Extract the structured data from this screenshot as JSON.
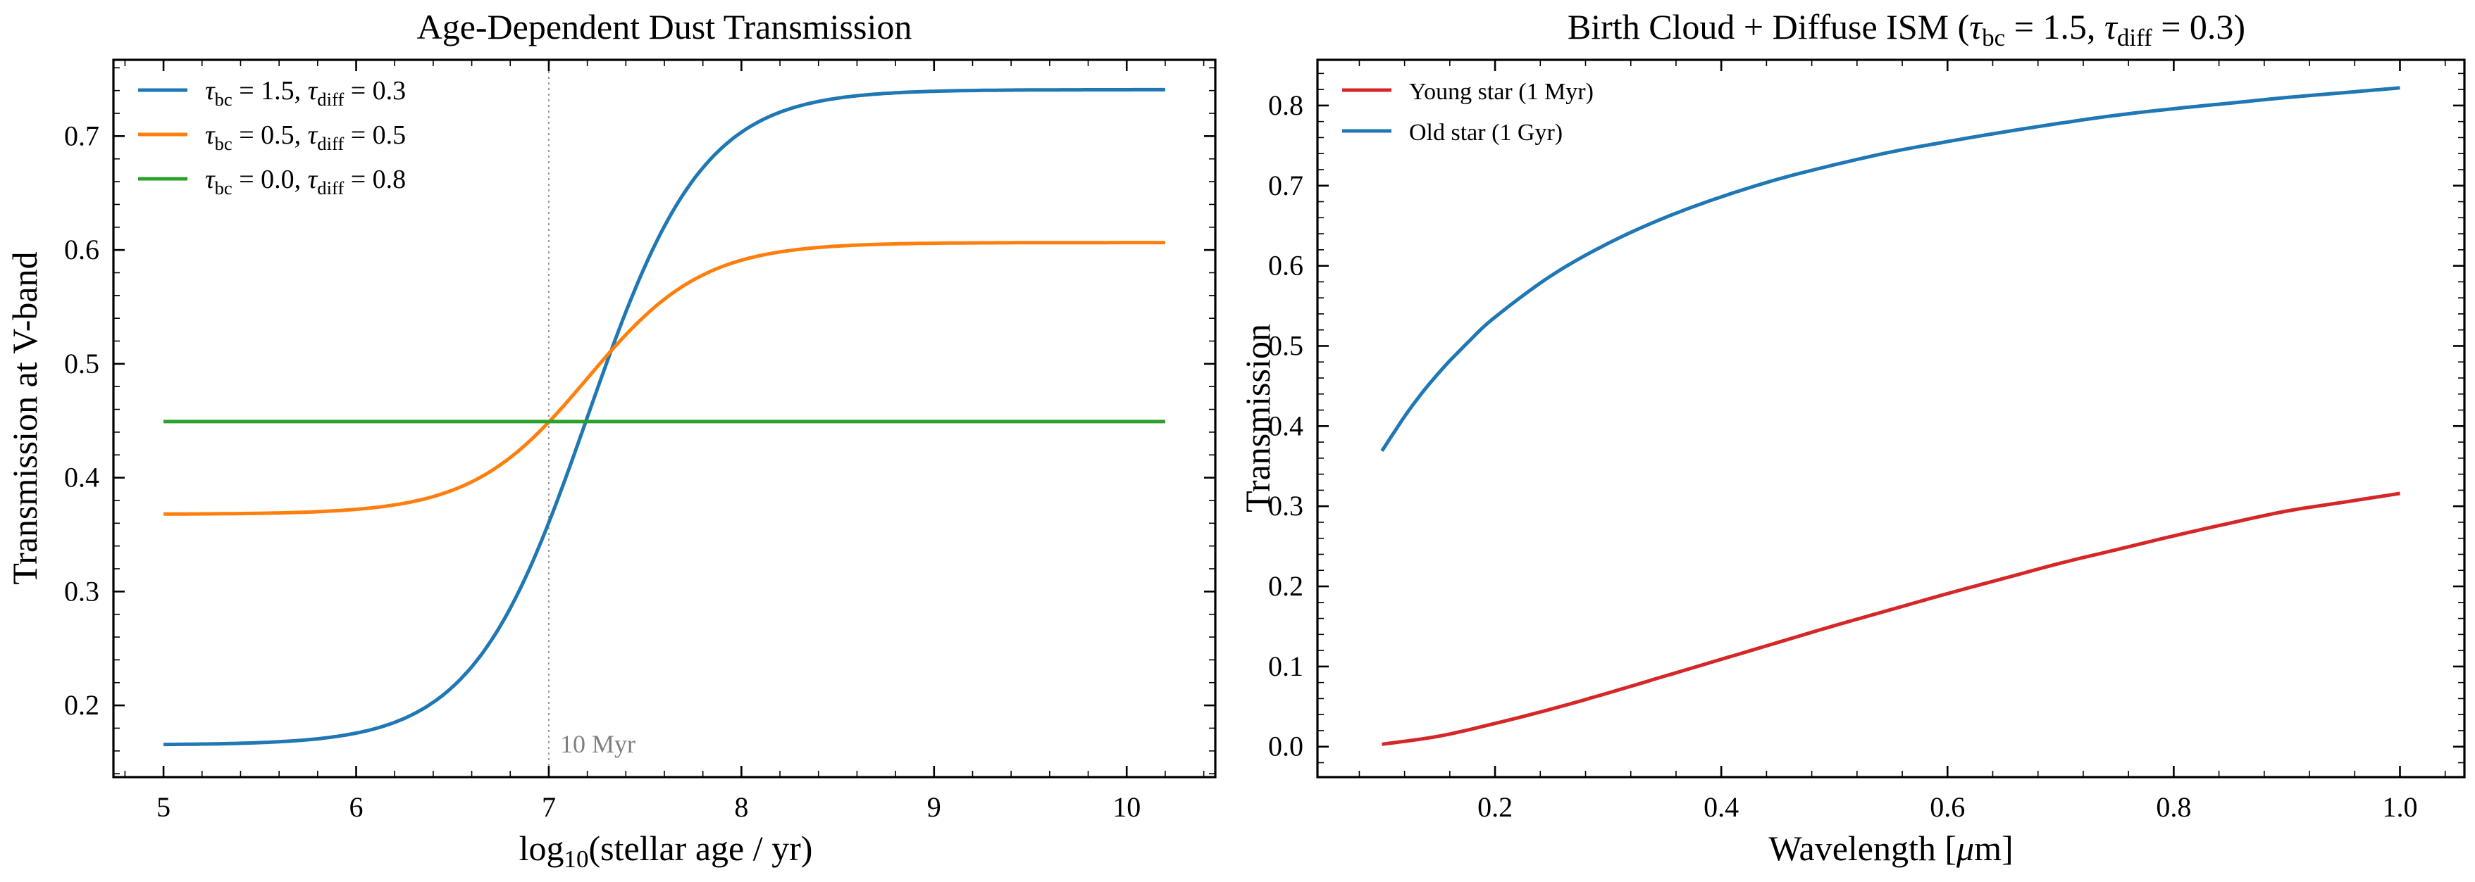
{
  "chart_data": [
    {
      "type": "line",
      "title": "Age-Dependent Dust Transmission",
      "xlabel": {
        "main": "log",
        "sub": "10",
        "rest": "(stellar age / yr)"
      },
      "ylabel": "Transmission at V-band",
      "xlim": [
        4.74,
        10.46
      ],
      "ylim": [
        0.137,
        0.767
      ],
      "xticks": [
        5,
        6,
        7,
        8,
        9,
        10
      ],
      "yticks": [
        0.2,
        0.3,
        0.4,
        0.5,
        0.6,
        0.7
      ],
      "xtick_labels": [
        "5",
        "6",
        "7",
        "8",
        "9",
        "10"
      ],
      "ytick_labels": [
        "0.2",
        "0.3",
        "0.4",
        "0.5",
        "0.6",
        "0.7"
      ],
      "grid": false,
      "legend_position": "top-left",
      "vline": {
        "x": 7.0,
        "label": "10 Myr",
        "color": "#999999"
      },
      "series": [
        {
          "name": "τbc = 1.5, τdiff = 0.3",
          "legend": {
            "t1": "τ",
            "s1": "bc",
            "v1": " = 1.5, ",
            "t2": "τ",
            "s2": "diff",
            "v2": " = 0.3"
          },
          "color": "#1f77b4",
          "sigmoid": {
            "low": 0.1653,
            "high": 0.7408,
            "mid": 7.2,
            "width": 0.3
          }
        },
        {
          "name": "τbc = 0.5, τdiff = 0.5",
          "legend": {
            "t1": "τ",
            "s1": "bc",
            "v1": " = 0.5, ",
            "t2": "τ",
            "s2": "diff",
            "v2": " = 0.5"
          },
          "color": "#ff7f0e",
          "sigmoid": {
            "low": 0.3679,
            "high": 0.6065,
            "mid": 7.2,
            "width": 0.3
          }
        },
        {
          "name": "τbc = 0.0, τdiff = 0.8",
          "legend": {
            "t1": "τ",
            "s1": "bc",
            "v1": " = 0.0, ",
            "t2": "τ",
            "s2": "diff",
            "v2": " = 0.8"
          },
          "color": "#2ca02c",
          "sigmoid": {
            "low": 0.4493,
            "high": 0.4493,
            "mid": 7.2,
            "width": 0.3
          }
        }
      ],
      "x_domain": [
        5.0,
        10.2
      ]
    },
    {
      "type": "line",
      "title": {
        "pre": "Birth Cloud + Diffuse ISM (",
        "t1": "τ",
        "s1": "bc",
        "v1": " = 1.5, ",
        "t2": "τ",
        "s2": "diff",
        "v2": " = 0.3)"
      },
      "xlabel": {
        "pre": "Wavelength [",
        "mu": "μ",
        "post": "m]"
      },
      "ylabel": "Transmission",
      "xlim": [
        0.043,
        1.057
      ],
      "ylim": [
        -0.038,
        0.857
      ],
      "xticks": [
        0.2,
        0.4,
        0.6,
        0.8,
        1.0
      ],
      "yticks": [
        0.0,
        0.1,
        0.2,
        0.3,
        0.4,
        0.5,
        0.6,
        0.7,
        0.8
      ],
      "xtick_labels": [
        "0.2",
        "0.4",
        "0.6",
        "0.8",
        "1.0"
      ],
      "ytick_labels": [
        "0.0",
        "0.1",
        "0.2",
        "0.3",
        "0.4",
        "0.5",
        "0.6",
        "0.7",
        "0.8"
      ],
      "grid": false,
      "legend_position": "top-left",
      "series": [
        {
          "name": "Young star (1 Myr)",
          "color": "#d62728",
          "x": [
            0.1,
            0.15,
            0.2,
            0.25,
            0.3,
            0.35,
            0.4,
            0.45,
            0.5,
            0.55,
            0.6,
            0.65,
            0.7,
            0.75,
            0.8,
            0.85,
            0.9,
            0.95,
            1.0
          ],
          "y": [
            0.003,
            0.013,
            0.029,
            0.047,
            0.067,
            0.088,
            0.109,
            0.13,
            0.151,
            0.171,
            0.191,
            0.21,
            0.229,
            0.246,
            0.263,
            0.279,
            0.294,
            0.305,
            0.316
          ]
        },
        {
          "name": "Old star (1 Gyr)",
          "color": "#1f77b4",
          "x": [
            0.1,
            0.125,
            0.15,
            0.175,
            0.2,
            0.25,
            0.3,
            0.35,
            0.4,
            0.45,
            0.5,
            0.55,
            0.6,
            0.65,
            0.7,
            0.75,
            0.8,
            0.85,
            0.9,
            0.95,
            1.0
          ],
          "y": [
            0.369,
            0.422,
            0.466,
            0.503,
            0.536,
            0.588,
            0.628,
            0.66,
            0.686,
            0.708,
            0.726,
            0.742,
            0.755,
            0.767,
            0.778,
            0.788,
            0.796,
            0.803,
            0.81,
            0.816,
            0.822
          ]
        }
      ]
    }
  ]
}
